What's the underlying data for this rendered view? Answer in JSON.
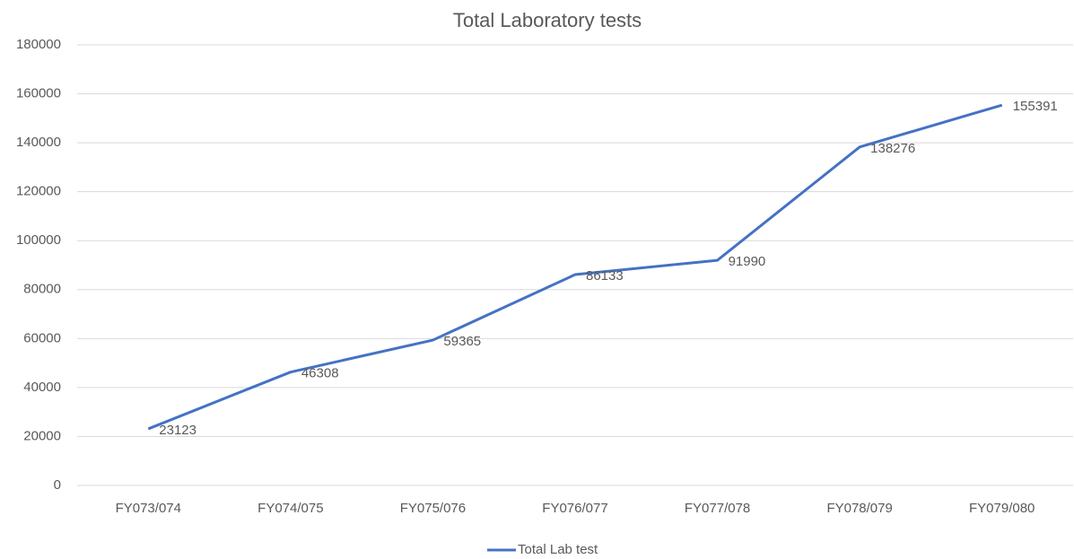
{
  "chart_data": {
    "type": "line",
    "title": "Total Laboratory tests",
    "categories": [
      "FY073/074",
      "FY074/075",
      "FY075/076",
      "FY076/077",
      "FY077/078",
      "FY078/079",
      "FY079/080"
    ],
    "series": [
      {
        "name": "Total Lab test",
        "color": "#4472c4",
        "values": [
          23123,
          46308,
          59365,
          86133,
          91990,
          138276,
          155391
        ]
      }
    ],
    "ylim": [
      0,
      180000
    ],
    "yticks": [
      0,
      20000,
      40000,
      60000,
      80000,
      100000,
      120000,
      140000,
      160000,
      180000
    ],
    "grid": true,
    "legend": "bottom",
    "data_labels": true
  }
}
